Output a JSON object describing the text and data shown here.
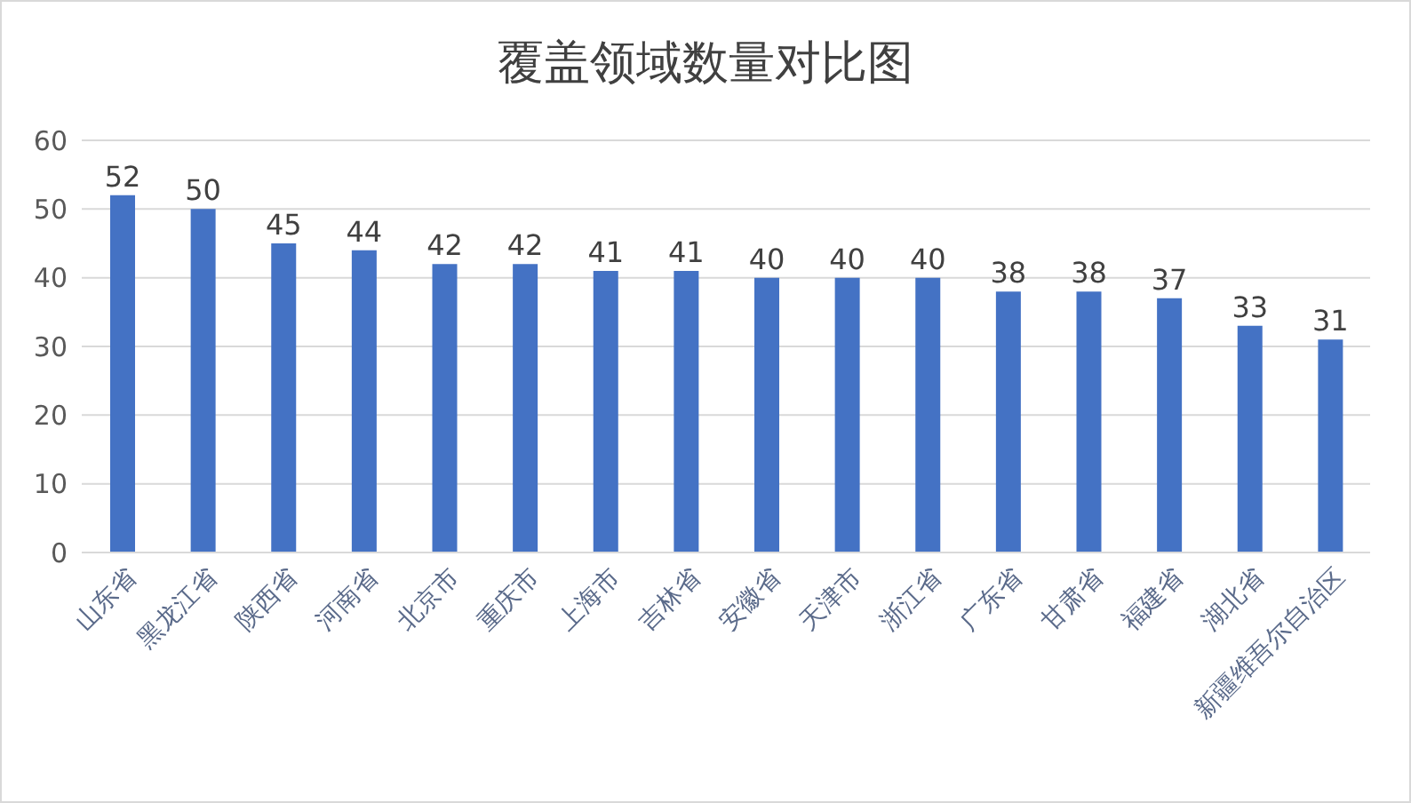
{
  "chart_data": {
    "type": "bar",
    "title": "覆盖领域数量对比图",
    "categories": [
      "山东省",
      "黑龙江省",
      "陕西省",
      "河南省",
      "北京市",
      "重庆市",
      "上海市",
      "吉林省",
      "安徽省",
      "天津市",
      "浙江省",
      "广东省",
      "甘肃省",
      "福建省",
      "湖北省",
      "新疆维吾尔自治区"
    ],
    "values": [
      52,
      50,
      45,
      44,
      42,
      42,
      41,
      41,
      40,
      40,
      40,
      38,
      38,
      37,
      33,
      31
    ],
    "color": "#4472c4",
    "ylim": [
      0,
      60
    ],
    "yticks": [
      0,
      10,
      20,
      30,
      40,
      50,
      60
    ],
    "grid": "y",
    "data_labels": true
  }
}
